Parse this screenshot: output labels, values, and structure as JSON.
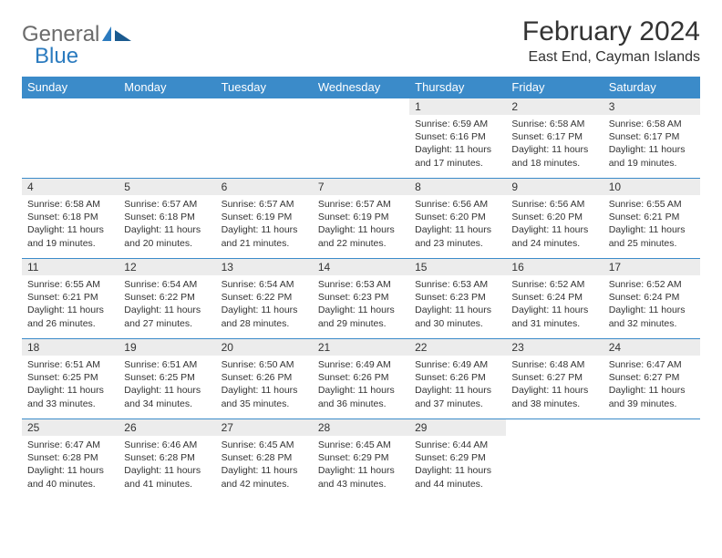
{
  "logo": {
    "text_general": "General",
    "text_blue": "Blue"
  },
  "header": {
    "month_title": "February 2024",
    "location": "East End, Cayman Islands"
  },
  "calendar": {
    "type": "table",
    "header_bg": "#3b8bc9",
    "header_fg": "#ffffff",
    "daynum_bg": "#ececec",
    "border_color": "#3b8bc9",
    "text_color": "#333333",
    "font_size_header": 13,
    "font_size_daynum": 12,
    "font_size_cell": 10.5,
    "days_of_week": [
      "Sunday",
      "Monday",
      "Tuesday",
      "Wednesday",
      "Thursday",
      "Friday",
      "Saturday"
    ],
    "weeks": [
      [
        {
          "blank": true
        },
        {
          "blank": true
        },
        {
          "blank": true
        },
        {
          "blank": true
        },
        {
          "n": "1",
          "sr": "6:59 AM",
          "ss": "6:16 PM",
          "dl": "11 hours and 17 minutes."
        },
        {
          "n": "2",
          "sr": "6:58 AM",
          "ss": "6:17 PM",
          "dl": "11 hours and 18 minutes."
        },
        {
          "n": "3",
          "sr": "6:58 AM",
          "ss": "6:17 PM",
          "dl": "11 hours and 19 minutes."
        }
      ],
      [
        {
          "n": "4",
          "sr": "6:58 AM",
          "ss": "6:18 PM",
          "dl": "11 hours and 19 minutes."
        },
        {
          "n": "5",
          "sr": "6:57 AM",
          "ss": "6:18 PM",
          "dl": "11 hours and 20 minutes."
        },
        {
          "n": "6",
          "sr": "6:57 AM",
          "ss": "6:19 PM",
          "dl": "11 hours and 21 minutes."
        },
        {
          "n": "7",
          "sr": "6:57 AM",
          "ss": "6:19 PM",
          "dl": "11 hours and 22 minutes."
        },
        {
          "n": "8",
          "sr": "6:56 AM",
          "ss": "6:20 PM",
          "dl": "11 hours and 23 minutes."
        },
        {
          "n": "9",
          "sr": "6:56 AM",
          "ss": "6:20 PM",
          "dl": "11 hours and 24 minutes."
        },
        {
          "n": "10",
          "sr": "6:55 AM",
          "ss": "6:21 PM",
          "dl": "11 hours and 25 minutes."
        }
      ],
      [
        {
          "n": "11",
          "sr": "6:55 AM",
          "ss": "6:21 PM",
          "dl": "11 hours and 26 minutes."
        },
        {
          "n": "12",
          "sr": "6:54 AM",
          "ss": "6:22 PM",
          "dl": "11 hours and 27 minutes."
        },
        {
          "n": "13",
          "sr": "6:54 AM",
          "ss": "6:22 PM",
          "dl": "11 hours and 28 minutes."
        },
        {
          "n": "14",
          "sr": "6:53 AM",
          "ss": "6:23 PM",
          "dl": "11 hours and 29 minutes."
        },
        {
          "n": "15",
          "sr": "6:53 AM",
          "ss": "6:23 PM",
          "dl": "11 hours and 30 minutes."
        },
        {
          "n": "16",
          "sr": "6:52 AM",
          "ss": "6:24 PM",
          "dl": "11 hours and 31 minutes."
        },
        {
          "n": "17",
          "sr": "6:52 AM",
          "ss": "6:24 PM",
          "dl": "11 hours and 32 minutes."
        }
      ],
      [
        {
          "n": "18",
          "sr": "6:51 AM",
          "ss": "6:25 PM",
          "dl": "11 hours and 33 minutes."
        },
        {
          "n": "19",
          "sr": "6:51 AM",
          "ss": "6:25 PM",
          "dl": "11 hours and 34 minutes."
        },
        {
          "n": "20",
          "sr": "6:50 AM",
          "ss": "6:26 PM",
          "dl": "11 hours and 35 minutes."
        },
        {
          "n": "21",
          "sr": "6:49 AM",
          "ss": "6:26 PM",
          "dl": "11 hours and 36 minutes."
        },
        {
          "n": "22",
          "sr": "6:49 AM",
          "ss": "6:26 PM",
          "dl": "11 hours and 37 minutes."
        },
        {
          "n": "23",
          "sr": "6:48 AM",
          "ss": "6:27 PM",
          "dl": "11 hours and 38 minutes."
        },
        {
          "n": "24",
          "sr": "6:47 AM",
          "ss": "6:27 PM",
          "dl": "11 hours and 39 minutes."
        }
      ],
      [
        {
          "n": "25",
          "sr": "6:47 AM",
          "ss": "6:28 PM",
          "dl": "11 hours and 40 minutes."
        },
        {
          "n": "26",
          "sr": "6:46 AM",
          "ss": "6:28 PM",
          "dl": "11 hours and 41 minutes."
        },
        {
          "n": "27",
          "sr": "6:45 AM",
          "ss": "6:28 PM",
          "dl": "11 hours and 42 minutes."
        },
        {
          "n": "28",
          "sr": "6:45 AM",
          "ss": "6:29 PM",
          "dl": "11 hours and 43 minutes."
        },
        {
          "n": "29",
          "sr": "6:44 AM",
          "ss": "6:29 PM",
          "dl": "11 hours and 44 minutes."
        },
        {
          "blank": true
        },
        {
          "blank": true
        }
      ]
    ],
    "labels": {
      "sunrise": "Sunrise:",
      "sunset": "Sunset:",
      "daylight": "Daylight:"
    }
  }
}
